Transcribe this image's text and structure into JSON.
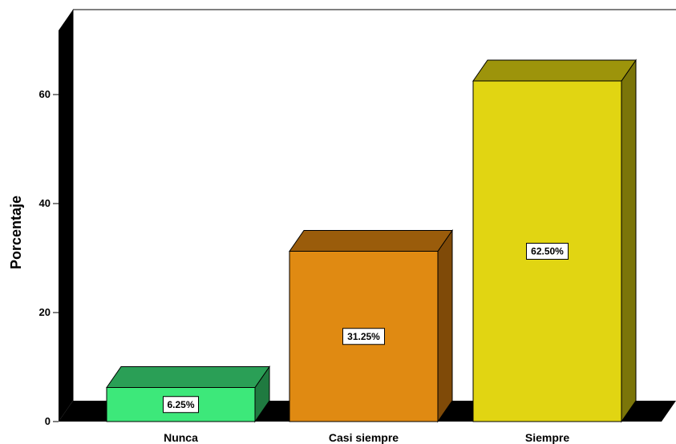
{
  "chart_data": {
    "type": "bar",
    "style": "3d",
    "categories": [
      "Nunca",
      "Casi siempre",
      "Siempre"
    ],
    "values": [
      6.25,
      31.25,
      62.5
    ],
    "value_labels": [
      "6.25%",
      "31.25%",
      "62.50%"
    ],
    "ylabel": "Porcentaje",
    "ylim": [
      0,
      70
    ],
    "yticks": [
      0,
      20,
      40,
      60
    ],
    "ytick_labels": [
      "0",
      "20",
      "40",
      "60"
    ],
    "grid": false,
    "legend": "none",
    "colors": [
      {
        "front": "#3de87a",
        "top": "#2a9f56",
        "side": "#1f7a40"
      },
      {
        "front": "#e08a12",
        "top": "#9a5c0b",
        "side": "#7f4a08"
      },
      {
        "front": "#e1d512",
        "top": "#9d940b",
        "side": "#7b7509"
      }
    ]
  }
}
